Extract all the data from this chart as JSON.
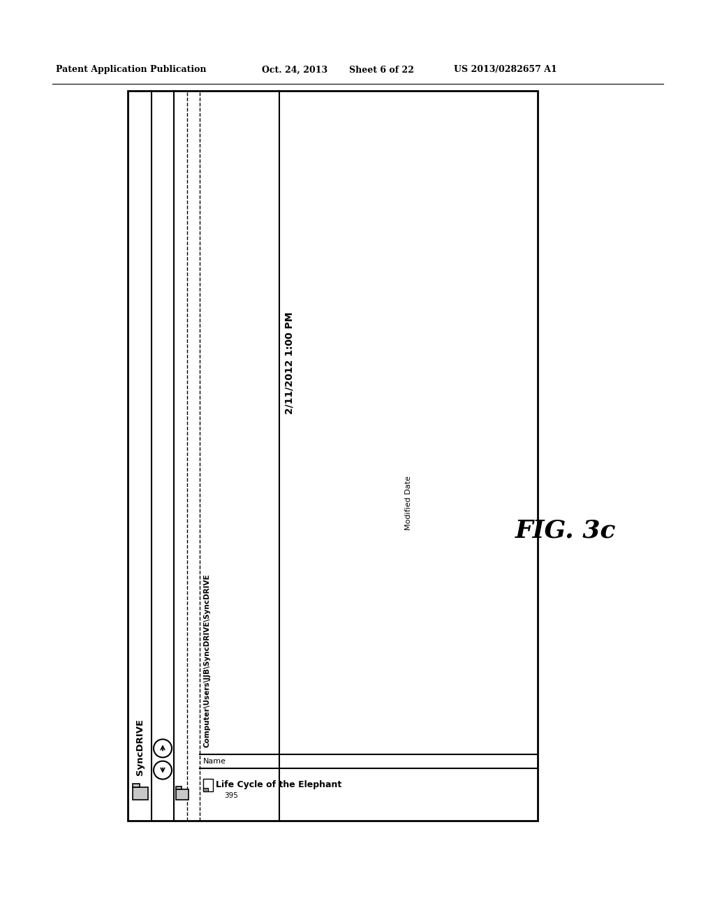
{
  "bg_color": "#ffffff",
  "header_text": "Patent Application Publication",
  "header_date": "Oct. 24, 2013  Sheet 6 of 22",
  "header_patent": "US 2013/0282657 A1",
  "fig_label": "FIG. 3c",
  "syncdrive_label": "SyncDRIVE",
  "path_label": "Computer\\Users\\JJB\\SyncDRIVE\\SyncDRIVE",
  "name_col": "Name",
  "modified_col": "Modified Date",
  "file_name": "Life Cycle of the Elephant",
  "file_num": "395",
  "file_date": "2/11/2012 1:00 PM"
}
